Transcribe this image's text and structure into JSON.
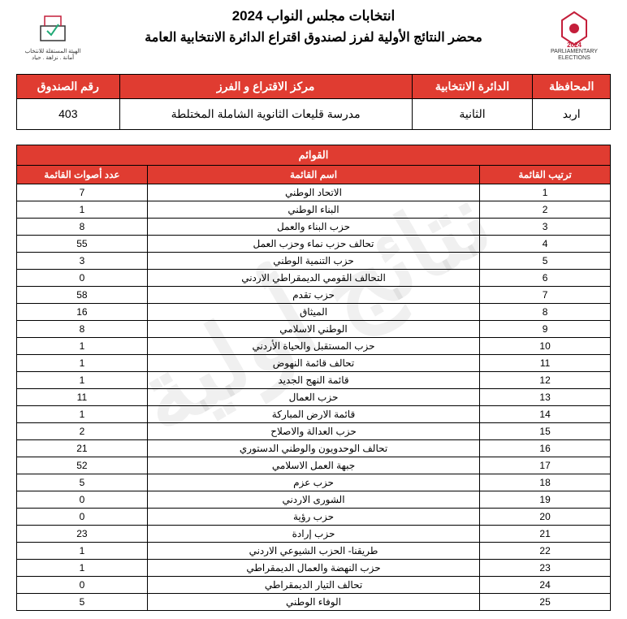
{
  "watermark": "نتائج أولية",
  "header": {
    "title1": "انتخابات مجلس النواب 2024",
    "title2": "محضر النتائج الأولية لفرز لصندوق اقتراع الدائرة الانتخابية العامة",
    "left_logo_text": "نيابية 2024",
    "left_logo_sub": "PARLIAMENTARY ELECTIONS",
    "right_logo_text": "الهيئة المستقلة للانتخاب",
    "right_logo_sub": "أمانة . نزاهة . حياد"
  },
  "info": {
    "headers": {
      "gov": "المحافظة",
      "district": "الدائرة الانتخابية",
      "center": "مركز الاقتراع و الفرز",
      "box": "رقم الصندوق"
    },
    "values": {
      "gov": "اربد",
      "district": "الثانية",
      "center": "مدرسة قليعات الثانوية الشاملة المختلطة",
      "box": "403"
    }
  },
  "lists": {
    "section_title": "القوائم",
    "headers": {
      "rank": "ترتيب القائمة",
      "name": "اسم القائمة",
      "votes": "عدد أصوات القائمة"
    },
    "rows": [
      {
        "rank": "1",
        "name": "الاتحاد الوطني",
        "votes": "7"
      },
      {
        "rank": "2",
        "name": "البناء الوطني",
        "votes": "1"
      },
      {
        "rank": "3",
        "name": "حزب البناء والعمل",
        "votes": "8"
      },
      {
        "rank": "4",
        "name": "تحالف حزب نماء وحزب العمل",
        "votes": "55"
      },
      {
        "rank": "5",
        "name": "حزب التنمية الوطني",
        "votes": "3"
      },
      {
        "rank": "6",
        "name": "التحالف القومي الديمقراطي الاردني",
        "votes": "0"
      },
      {
        "rank": "7",
        "name": "حزب تقدم",
        "votes": "58"
      },
      {
        "rank": "8",
        "name": "الميثاق",
        "votes": "16"
      },
      {
        "rank": "9",
        "name": "الوطني الاسلامي",
        "votes": "8"
      },
      {
        "rank": "10",
        "name": "حزب المستقبل والحياة الأردني",
        "votes": "1"
      },
      {
        "rank": "11",
        "name": "تحالف قائمة النهوض",
        "votes": "1"
      },
      {
        "rank": "12",
        "name": "قائمة النهج الجديد",
        "votes": "1"
      },
      {
        "rank": "13",
        "name": "حزب العمال",
        "votes": "11"
      },
      {
        "rank": "14",
        "name": "قائمة الارض المباركة",
        "votes": "1"
      },
      {
        "rank": "15",
        "name": "حزب العدالة والاصلاح",
        "votes": "2"
      },
      {
        "rank": "16",
        "name": "تحالف الوحدويون والوطني الدستوري",
        "votes": "21"
      },
      {
        "rank": "17",
        "name": "جبهة العمل الاسلامي",
        "votes": "52"
      },
      {
        "rank": "18",
        "name": "حزب عزم",
        "votes": "5"
      },
      {
        "rank": "19",
        "name": "الشورى الاردني",
        "votes": "0"
      },
      {
        "rank": "20",
        "name": "حزب رؤية",
        "votes": "0"
      },
      {
        "rank": "21",
        "name": "حزب إرادة",
        "votes": "23"
      },
      {
        "rank": "22",
        "name": "طريقنا- الحزب الشيوعي الاردني",
        "votes": "1"
      },
      {
        "rank": "23",
        "name": "حزب النهضة والعمال الديمقراطي",
        "votes": "1"
      },
      {
        "rank": "24",
        "name": "تحالف التيار الديمقراطي",
        "votes": "0"
      },
      {
        "rank": "25",
        "name": "الوفاء الوطني",
        "votes": "5"
      }
    ]
  },
  "styling": {
    "header_bg": "#e03c31",
    "header_fg": "#ffffff",
    "border_color": "#000000",
    "page_bg": "#ffffff",
    "font_family": "Arial",
    "title_fontsize_pt": 13,
    "table_fontsize_pt": 9,
    "col_widths_pct": {
      "rank": 22,
      "name": 56,
      "votes": 22
    }
  }
}
